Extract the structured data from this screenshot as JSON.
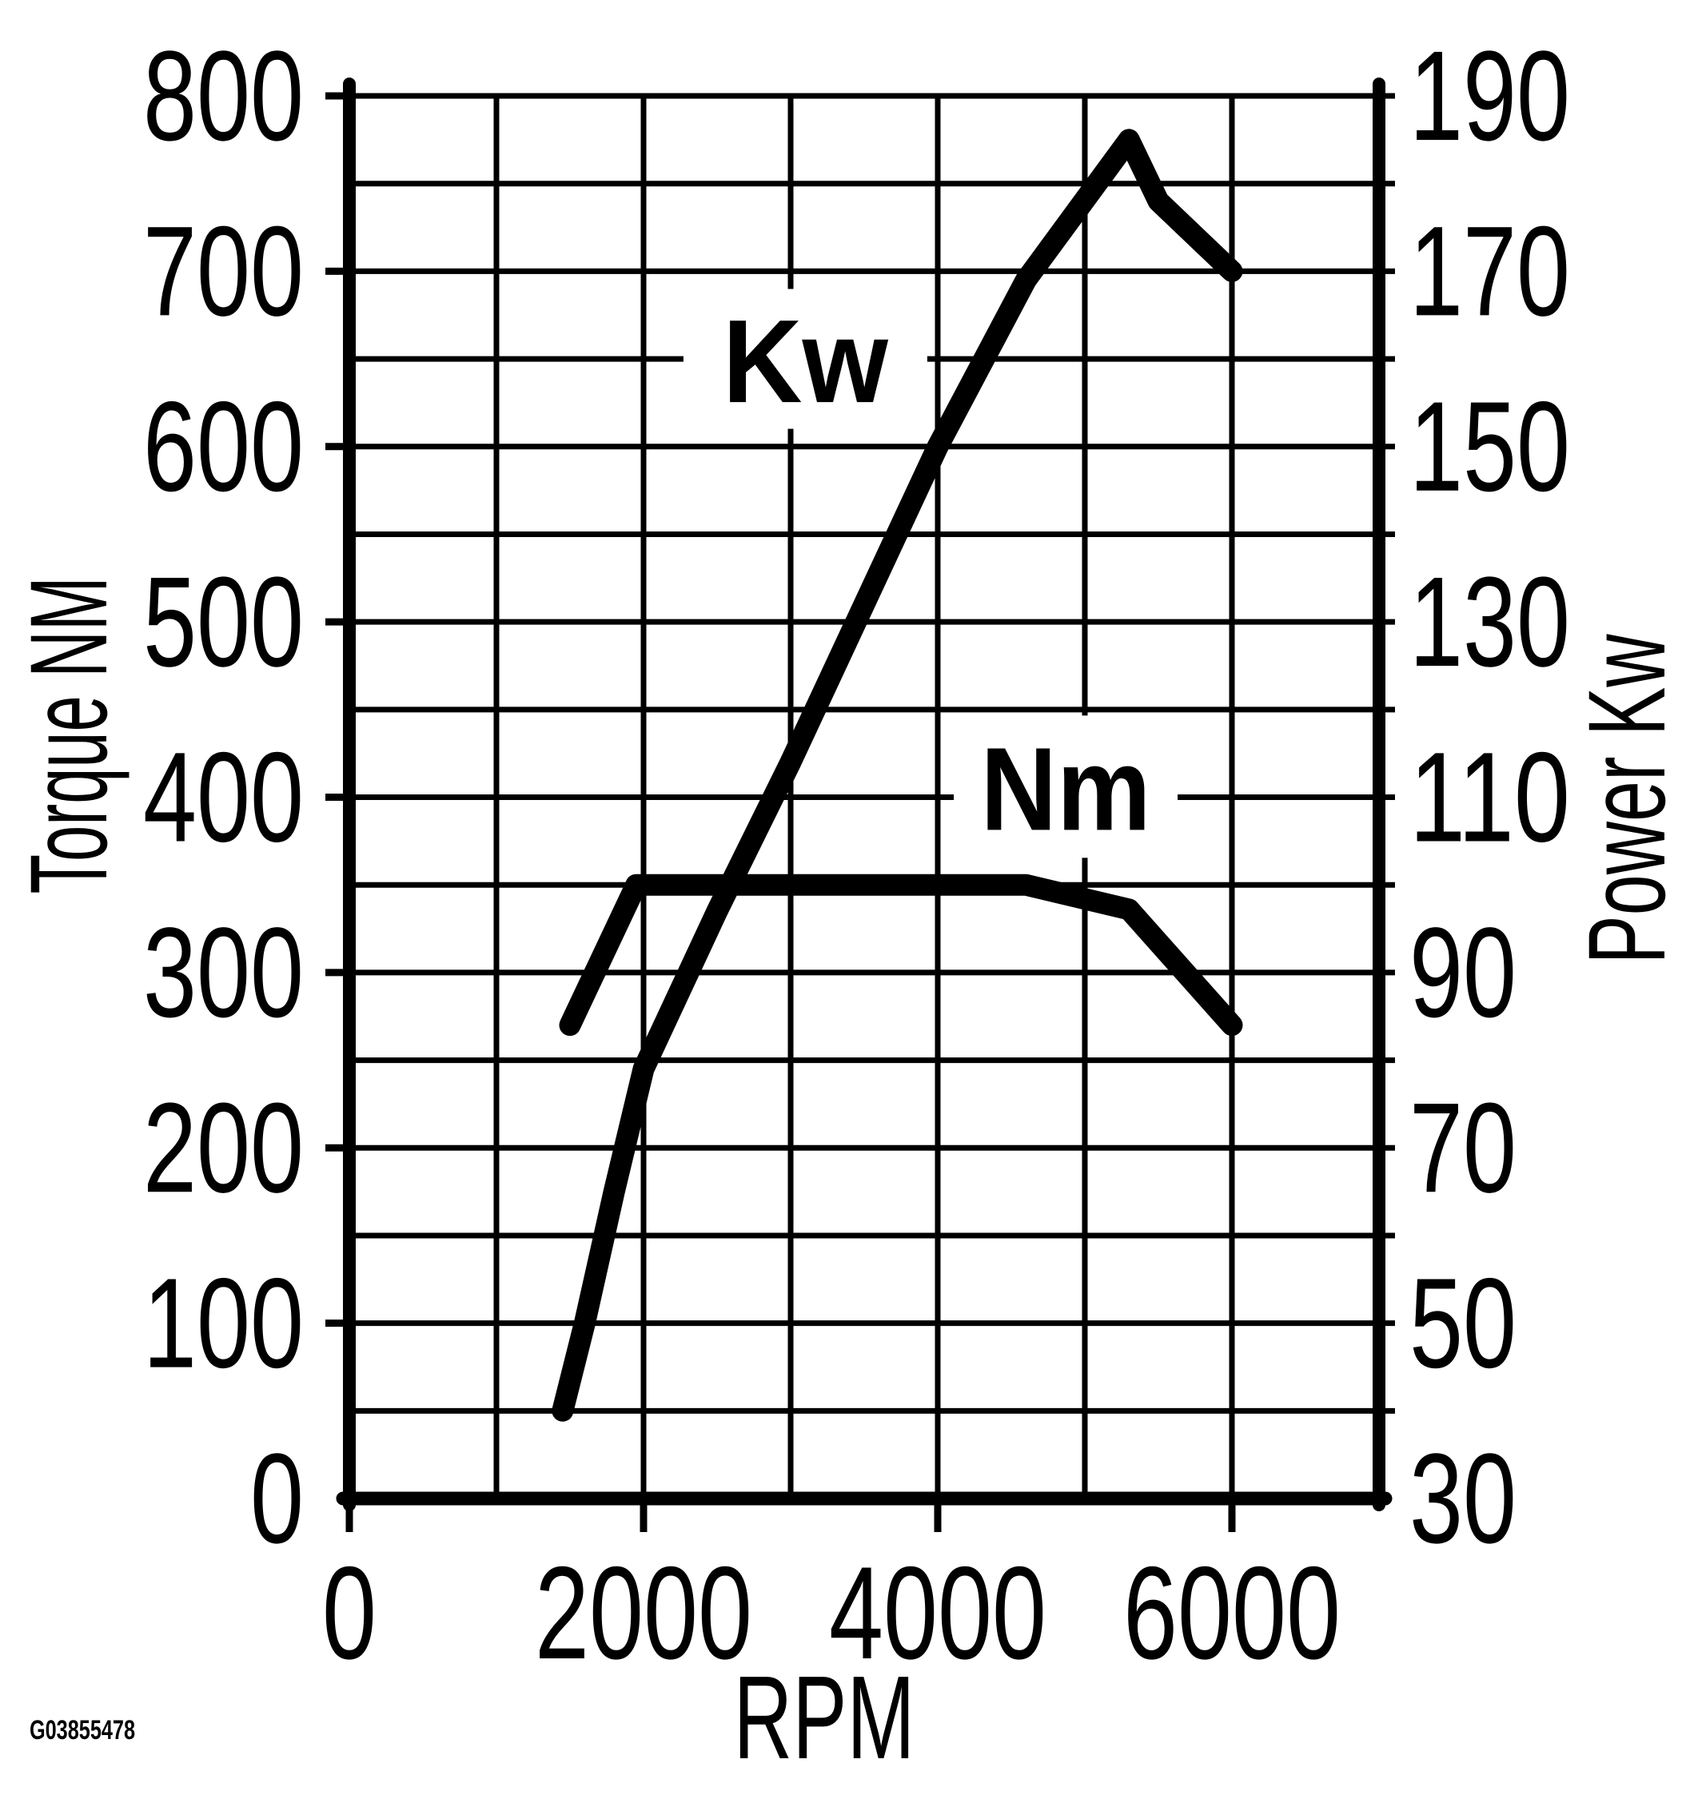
{
  "watermark": "G03855478",
  "chart_data": {
    "type": "line",
    "title": "",
    "xlabel": "RPM",
    "ylabel_left": "Torque NM",
    "ylabel_right": "Power Kw",
    "grid": true,
    "legend_position": "inline-curve-labels",
    "colors": {
      "ink": "#000000",
      "background": "#ffffff"
    },
    "x": {
      "min": 0,
      "max": 7000,
      "grid_step": 1000,
      "ticks": [
        0,
        2000,
        4000,
        6000
      ]
    },
    "y_left": {
      "min": 0,
      "max": 800,
      "grid_step": 50,
      "ticks": [
        800,
        700,
        600,
        500,
        400,
        300,
        200,
        100,
        0
      ]
    },
    "y_right": {
      "min": 30,
      "max": 190,
      "grid_step": 10,
      "ticks": [
        190,
        170,
        150,
        130,
        110,
        90,
        70,
        50,
        30
      ]
    },
    "series_labels": {
      "kw": "Kw",
      "nm": "Nm"
    },
    "series": [
      {
        "name": "Kw",
        "yaxis": "right",
        "label": "Kw",
        "label_at": {
          "rpm": 3100,
          "value": 160
        },
        "points": [
          [
            1450,
            40
          ],
          [
            1600,
            50
          ],
          [
            1800,
            65
          ],
          [
            2000,
            79
          ],
          [
            2500,
            97
          ],
          [
            3000,
            114
          ],
          [
            3500,
            132
          ],
          [
            4000,
            150
          ],
          [
            4600,
            169
          ],
          [
            5300,
            185
          ],
          [
            5500,
            178
          ],
          [
            6000,
            170
          ]
        ]
      },
      {
        "name": "Nm",
        "yaxis": "left",
        "label": "Nm",
        "label_at": {
          "rpm": 4870,
          "value": 406
        },
        "points": [
          [
            1500,
            270
          ],
          [
            1950,
            350
          ],
          [
            4600,
            350
          ],
          [
            5300,
            336
          ],
          [
            6000,
            270
          ]
        ]
      }
    ]
  }
}
